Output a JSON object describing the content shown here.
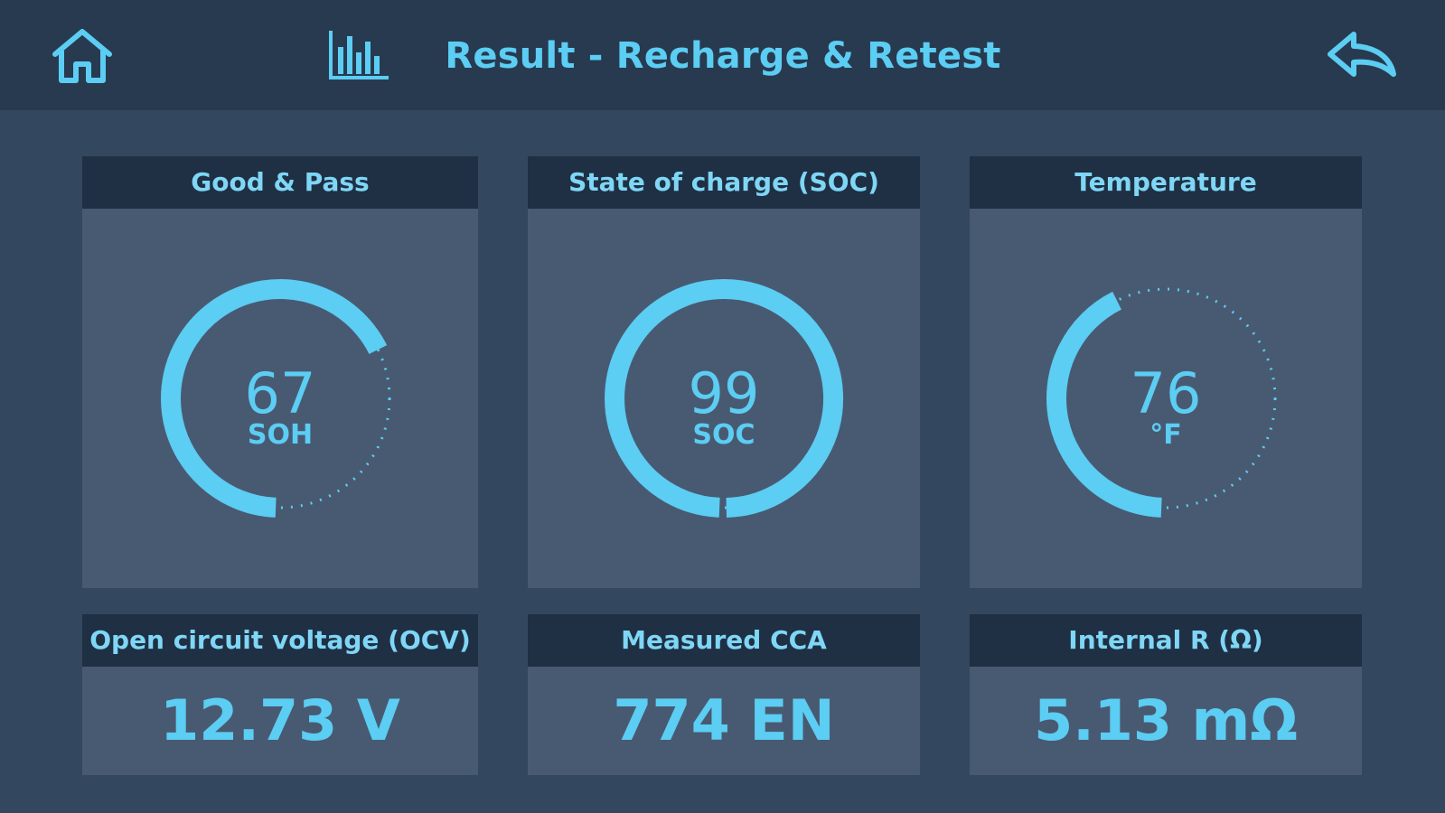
{
  "header": {
    "title": "Result - Recharge & Retest",
    "home_icon": "home-icon",
    "chart_icon": "bar-chart-icon",
    "back_icon": "back-arrow-icon"
  },
  "colors": {
    "accent": "#5ccdf3",
    "header_bg": "#283a50",
    "page_bg": "#33475e",
    "panel_head_bg": "#1f3044",
    "panel_body_bg": "#485a72"
  },
  "gauges": [
    {
      "title": "Good & Pass",
      "value": "67",
      "unit": "SOH",
      "fraction": 0.67
    },
    {
      "title": "State of charge (SOC)",
      "value": "99",
      "unit": "SOC",
      "fraction": 0.99
    },
    {
      "title": "Temperature",
      "value": "76",
      "unit": "°F",
      "fraction": 0.42
    }
  ],
  "metrics": [
    {
      "title": "Open circuit voltage (OCV)",
      "value": "12.73 V"
    },
    {
      "title": "Measured CCA",
      "value": "774 EN"
    },
    {
      "title": "Internal R (Ω)",
      "value": "5.13 mΩ"
    }
  ]
}
